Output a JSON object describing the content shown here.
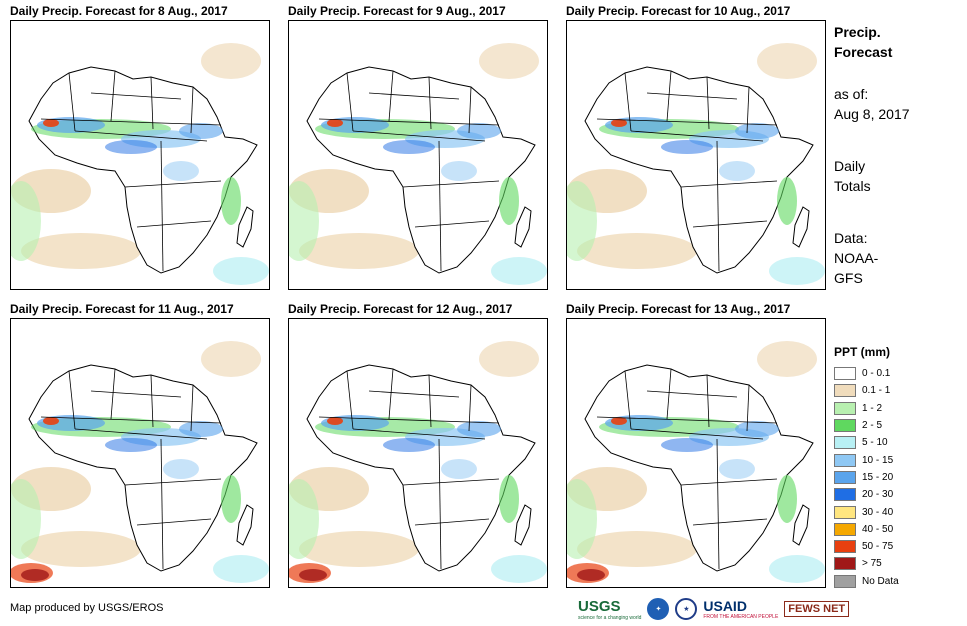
{
  "panels": [
    {
      "title": "Daily Precip. Forecast for 8 Aug., 2017"
    },
    {
      "title": "Daily Precip. Forecast for 9 Aug., 2017"
    },
    {
      "title": "Daily Precip. Forecast for 10 Aug., 2017"
    },
    {
      "title": "Daily Precip. Forecast for 11 Aug., 2017"
    },
    {
      "title": "Daily Precip. Forecast for 12 Aug., 2017"
    },
    {
      "title": "Daily Precip. Forecast for 13 Aug., 2017"
    }
  ],
  "sidebar": {
    "title_line1": "Precip.",
    "title_line2": "Forecast",
    "asof_label": "as of:",
    "asof_date": "Aug 8, 2017",
    "totals_line1": "Daily",
    "totals_line2": "Totals",
    "data_label": "Data:",
    "data_line1": "NOAA-",
    "data_line2": "GFS"
  },
  "legend": {
    "title": "PPT (mm)",
    "items": [
      {
        "label": "0 - 0.1",
        "color": "#ffffff"
      },
      {
        "label": "0.1 - 1",
        "color": "#f0dcbc"
      },
      {
        "label": "1 - 2",
        "color": "#b8f0b0"
      },
      {
        "label": "2 - 5",
        "color": "#5fd85f"
      },
      {
        "label": "5 - 10",
        "color": "#b8f0f4"
      },
      {
        "label": "10 - 15",
        "color": "#8fc8f4"
      },
      {
        "label": "15 - 20",
        "color": "#5aa4ec"
      },
      {
        "label": "20 - 30",
        "color": "#1f6ee4"
      },
      {
        "label": "30 - 40",
        "color": "#ffe680"
      },
      {
        "label": "40 - 50",
        "color": "#f5a800"
      },
      {
        "label": "50 - 75",
        "color": "#e84010"
      },
      {
        "label": "> 75",
        "color": "#a01818"
      },
      {
        "label": "No Data",
        "color": "#a0a0a0"
      }
    ]
  },
  "credit": "Map produced by USGS/EROS",
  "logos": {
    "usgs": "USGS",
    "usgs_tagline": "science for a changing world",
    "usaid": "USAID",
    "usaid_tagline": "FROM THE AMERICAN PEOPLE",
    "fews": "FEWS NET"
  }
}
